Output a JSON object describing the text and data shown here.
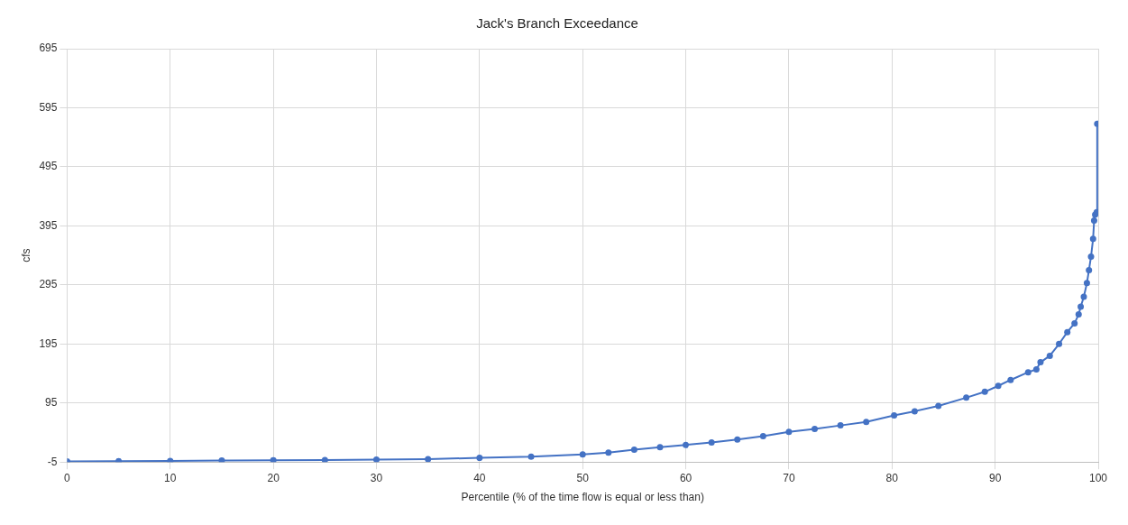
{
  "chart_data": {
    "type": "line",
    "title": "Jack's Branch Exceedance",
    "xlabel": "Percentile (% of the time flow is equal or less than)",
    "ylabel": "cfs",
    "x": [
      0,
      5,
      10,
      15,
      20,
      25,
      30,
      35,
      40,
      45,
      50,
      52.5,
      55,
      57.5,
      60,
      62.5,
      65,
      67.5,
      70,
      72.5,
      75,
      77.5,
      80.2,
      82.2,
      84.5,
      87.2,
      89,
      90.3,
      91.5,
      93.2,
      94,
      94.4,
      95.3,
      96.2,
      97,
      97.7,
      98.1,
      98.3,
      98.6,
      98.9,
      99.1,
      99.3,
      99.5,
      99.6,
      99.7,
      99.85,
      99.9
    ],
    "series": [
      {
        "color": "#4472c4",
        "values": [
          -4,
          -3.5,
          -3,
          -2.5,
          -2,
          -1.5,
          -1,
          0,
          2,
          4,
          8,
          11,
          16,
          20,
          24,
          28,
          33,
          39,
          46,
          51,
          57,
          63,
          74,
          81,
          90,
          104,
          114,
          124,
          134,
          147,
          152,
          164,
          175,
          195,
          215,
          230,
          245,
          258,
          275,
          298,
          320,
          343,
          373,
          404,
          414,
          418,
          568
        ]
      }
    ],
    "xlim": [
      0,
      100
    ],
    "xticks": [
      0,
      10,
      20,
      30,
      40,
      50,
      60,
      70,
      80,
      90,
      100
    ],
    "ylim": [
      -5,
      695
    ],
    "yticks": [
      -5,
      95,
      195,
      295,
      395,
      495,
      595,
      695
    ],
    "grid": true,
    "legend": false,
    "marker": "circle",
    "line_style": "solid"
  }
}
